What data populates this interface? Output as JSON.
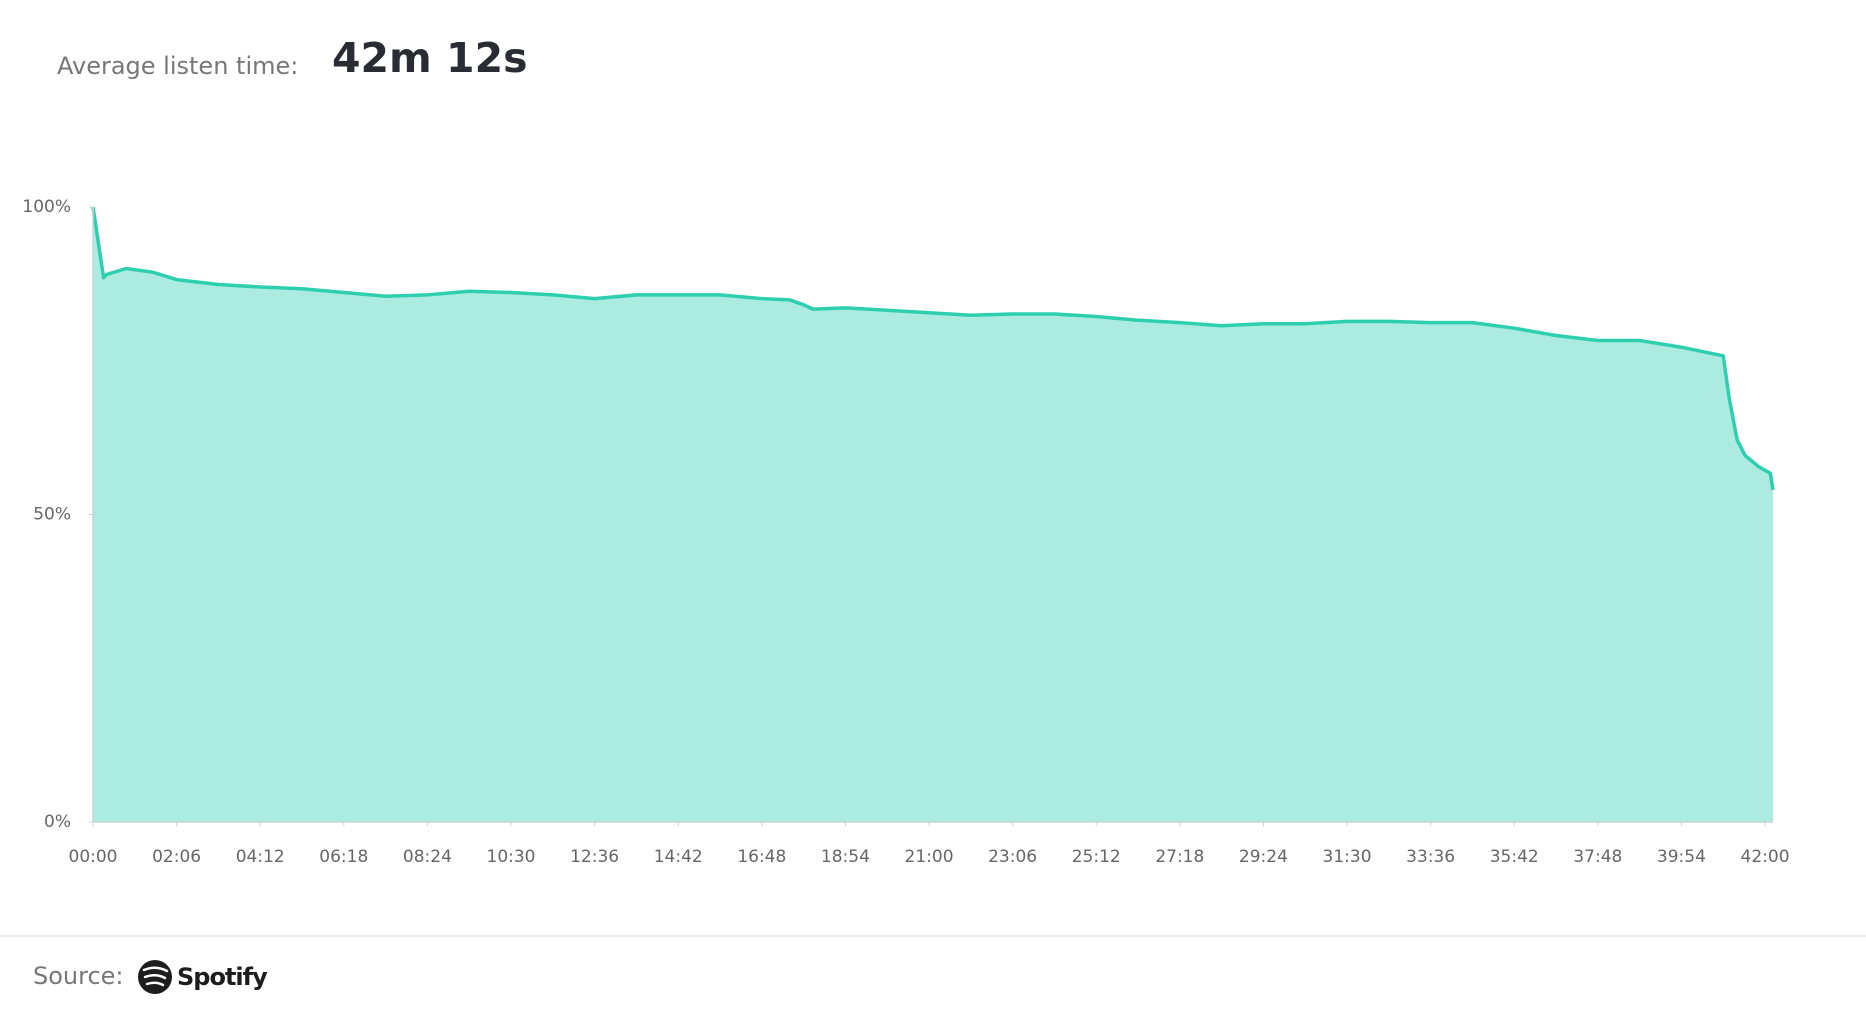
{
  "header": {
    "label": "Average listen time:",
    "value": "42m 12s"
  },
  "chart_data": {
    "type": "area",
    "x": [
      0,
      16,
      20,
      50,
      90,
      126,
      189,
      252,
      315,
      378,
      441,
      504,
      567,
      630,
      693,
      756,
      819,
      882,
      945,
      1008,
      1050,
      1071,
      1085,
      1134,
      1197,
      1260,
      1323,
      1386,
      1449,
      1512,
      1575,
      1638,
      1701,
      1764,
      1827,
      1890,
      1953,
      2016,
      2079,
      2142,
      2205,
      2268,
      2331,
      2394,
      2457,
      2466,
      2478,
      2490,
      2510,
      2528,
      2532
    ],
    "values": [
      100,
      88.5,
      89,
      90,
      89.4,
      88.2,
      87.4,
      87,
      86.7,
      86.1,
      85.5,
      85.7,
      86.3,
      86.1,
      85.7,
      85.1,
      85.7,
      85.7,
      85.7,
      85.1,
      84.9,
      84.1,
      83.4,
      83.6,
      83.2,
      82.8,
      82.4,
      82.6,
      82.6,
      82.2,
      81.6,
      81.2,
      80.7,
      81,
      81,
      81.4,
      81.4,
      81.2,
      81.2,
      80.3,
      79.1,
      78.3,
      78.3,
      77.2,
      75.8,
      68.9,
      62.1,
      59.6,
      57.8,
      56.7,
      54
    ],
    "color": "#2ecfae",
    "fill": "#abebe0",
    "xlim": [
      0,
      2532
    ],
    "xticks": [
      {
        "value": 0,
        "label": "00:00"
      },
      {
        "value": 126,
        "label": "02:06"
      },
      {
        "value": 252,
        "label": "04:12"
      },
      {
        "value": 378,
        "label": "06:18"
      },
      {
        "value": 504,
        "label": "08:24"
      },
      {
        "value": 630,
        "label": "10:30"
      },
      {
        "value": 756,
        "label": "12:36"
      },
      {
        "value": 882,
        "label": "14:42"
      },
      {
        "value": 1008,
        "label": "16:48"
      },
      {
        "value": 1134,
        "label": "18:54"
      },
      {
        "value": 1260,
        "label": "21:00"
      },
      {
        "value": 1386,
        "label": "23:06"
      },
      {
        "value": 1512,
        "label": "25:12"
      },
      {
        "value": 1638,
        "label": "27:18"
      },
      {
        "value": 1764,
        "label": "29:24"
      },
      {
        "value": 1890,
        "label": "31:30"
      },
      {
        "value": 2016,
        "label": "33:36"
      },
      {
        "value": 2142,
        "label": "35:42"
      },
      {
        "value": 2268,
        "label": "37:48"
      },
      {
        "value": 2394,
        "label": "39:54"
      },
      {
        "value": 2520,
        "label": "42:00"
      }
    ],
    "ylim": [
      0,
      100
    ],
    "yticks": [
      {
        "value": 0,
        "label": "0%"
      },
      {
        "value": 50,
        "label": "50%"
      },
      {
        "value": 100,
        "label": "100%"
      }
    ]
  },
  "footer": {
    "label": "Source:",
    "brand": "Spotify"
  }
}
